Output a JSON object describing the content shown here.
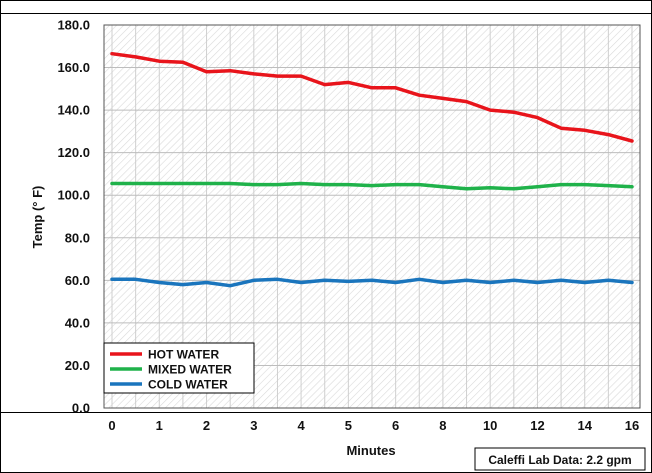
{
  "chart_data": {
    "type": "line",
    "title": "",
    "xlabel": "Minutes",
    "ylabel": "Temp (° F)",
    "x_tick_labels": [
      "0",
      "1",
      "2",
      "3",
      "4",
      "5",
      "6",
      "8",
      "10",
      "12",
      "14",
      "16"
    ],
    "y_tick_labels": [
      "0.0",
      "20.0",
      "40.0",
      "60.0",
      "80.0",
      "100.0",
      "120.0",
      "140.0",
      "160.0",
      "180.0"
    ],
    "ylim": [
      0,
      180
    ],
    "grid": true,
    "legend_position": "bottom-left",
    "note": "Caleffi Lab Data: 2.2 gpm",
    "series": [
      {
        "name": "HOT WATER",
        "color": "#e8141b",
        "values": [
          166.5,
          165,
          163,
          162.5,
          158,
          158.5,
          157,
          156,
          156,
          152,
          153,
          150.5,
          150.5,
          147,
          145.5,
          144,
          140,
          139,
          136.5,
          131.5,
          130.5,
          128.5,
          125.5
        ]
      },
      {
        "name": "MIXED WATER",
        "color": "#1fb24a",
        "values": [
          105.5,
          105.5,
          105.5,
          105.5,
          105.5,
          105.5,
          105,
          105,
          105.5,
          105,
          105,
          104.5,
          105,
          105,
          104,
          103,
          103.5,
          103,
          104,
          105,
          105,
          104.5,
          104
        ]
      },
      {
        "name": "COLD WATER",
        "color": "#1a75bd",
        "values": [
          60.5,
          60.5,
          59,
          58,
          59,
          57.5,
          60,
          60.5,
          59,
          60,
          59.5,
          60,
          59,
          60.5,
          59,
          60,
          59,
          60,
          59,
          60,
          59,
          60,
          59
        ]
      }
    ]
  }
}
